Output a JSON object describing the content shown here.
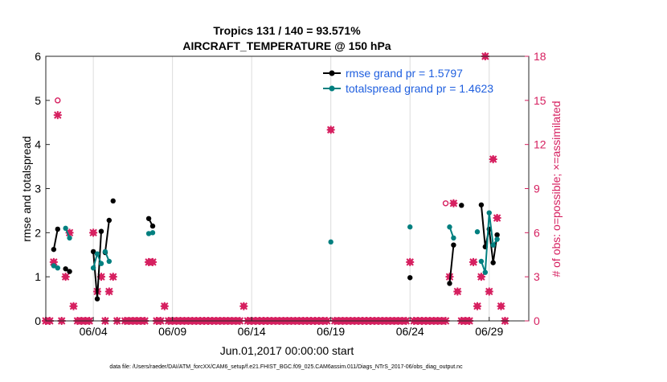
{
  "chart_data": {
    "type": "line",
    "title_line1": "Tropics 131 / 140 = 93.571%",
    "title_line2": "AIRCRAFT_TEMPERATURE @ 150 hPa",
    "xlabel": "Jun.01,2017 00:00:00 start",
    "ylabel_left": "rmse and totalspread",
    "ylabel_right": "# of obs: o=possible; ×=assimilated",
    "footnote": "data file: /Users/raeder/DAI/ATM_forcXX/CAM6_setup/f.e21.FHIST_BGC.f09_025.CAM6assim.011/Diags_NTrS_2017-06/obs_diag_output.nc",
    "xlim": [
      0,
      30.5
    ],
    "ylim_left": [
      0,
      6
    ],
    "ylim_right": [
      0,
      18
    ],
    "x_ticks": [
      {
        "x": 3,
        "label": "06/04"
      },
      {
        "x": 8,
        "label": "06/09"
      },
      {
        "x": 13,
        "label": "06/14"
      },
      {
        "x": 18,
        "label": "06/19"
      },
      {
        "x": 23,
        "label": "06/24"
      },
      {
        "x": 28,
        "label": "06/29"
      }
    ],
    "y_ticks_left": [
      "0",
      "1",
      "2",
      "3",
      "4",
      "5",
      "6"
    ],
    "y_ticks_right": [
      "0",
      "3",
      "6",
      "9",
      "12",
      "15",
      "18"
    ],
    "colors": {
      "rmse": "#000000",
      "spread": "#007f7f",
      "obs": "#d62060",
      "legend_text": "#1f5fdf"
    },
    "series": [
      {
        "name": "rmse grand pr = 1.5797",
        "axis": "left",
        "points": [
          [
            0.5,
            1.62
          ],
          [
            0.75,
            2.08
          ],
          null,
          [
            1.25,
            1.18
          ],
          [
            1.5,
            1.12
          ],
          null,
          [
            3.0,
            1.57
          ],
          [
            3.25,
            0.5
          ],
          [
            3.5,
            2.03
          ],
          null,
          [
            3.75,
            1.55
          ],
          [
            4.0,
            2.28
          ],
          null,
          [
            4.25,
            2.72
          ],
          null,
          [
            6.5,
            2.32
          ],
          [
            6.75,
            2.15
          ],
          null,
          [
            23.0,
            0.98
          ],
          null,
          [
            25.5,
            0.85
          ],
          [
            25.75,
            1.72
          ],
          null,
          [
            26.25,
            2.62
          ],
          null,
          [
            27.5,
            2.63
          ],
          [
            27.75,
            1.68
          ],
          [
            28.0,
            2.08
          ],
          [
            28.25,
            1.32
          ],
          [
            28.5,
            1.95
          ]
        ]
      },
      {
        "name": "totalspread grand pr = 1.4623",
        "axis": "left",
        "points": [
          [
            0.5,
            1.25
          ],
          [
            0.75,
            1.2
          ],
          null,
          [
            1.25,
            2.1
          ],
          [
            1.5,
            1.88
          ],
          null,
          [
            3.0,
            1.2
          ],
          [
            3.25,
            1.52
          ],
          [
            3.5,
            1.3
          ],
          null,
          [
            3.75,
            1.57
          ],
          [
            4.0,
            1.35
          ],
          null,
          [
            6.5,
            1.98
          ],
          [
            6.75,
            2.0
          ],
          null,
          [
            18.0,
            1.79
          ],
          null,
          [
            23.0,
            2.13
          ],
          null,
          [
            25.5,
            2.13
          ],
          [
            25.75,
            1.88
          ],
          null,
          [
            27.25,
            2.02
          ],
          null,
          [
            27.5,
            1.35
          ],
          [
            27.75,
            1.1
          ],
          [
            28.0,
            2.45
          ],
          [
            28.25,
            1.72
          ],
          [
            28.5,
            1.85
          ]
        ]
      }
    ],
    "obs_possible": [
      [
        0.0,
        0
      ],
      [
        0.25,
        0
      ],
      [
        0.5,
        4
      ],
      [
        0.75,
        15
      ],
      [
        1.0,
        0
      ],
      [
        1.25,
        3
      ],
      [
        1.5,
        6
      ],
      [
        1.75,
        1
      ],
      [
        2.0,
        0
      ],
      [
        2.25,
        0
      ],
      [
        2.5,
        0
      ],
      [
        2.75,
        0
      ],
      [
        3.0,
        6
      ],
      [
        3.25,
        2
      ],
      [
        3.5,
        3
      ],
      [
        3.75,
        0
      ],
      [
        4.0,
        2
      ],
      [
        4.25,
        3
      ],
      [
        4.5,
        0
      ],
      [
        5.0,
        0
      ],
      [
        5.25,
        0
      ],
      [
        5.5,
        0
      ],
      [
        5.75,
        0
      ],
      [
        6.0,
        0
      ],
      [
        6.25,
        0
      ],
      [
        6.5,
        4
      ],
      [
        6.75,
        4
      ],
      [
        7.0,
        0
      ],
      [
        7.25,
        0
      ],
      [
        7.5,
        1
      ],
      [
        7.75,
        0
      ],
      [
        8.0,
        0
      ],
      [
        8.25,
        0
      ],
      [
        8.5,
        0
      ],
      [
        8.75,
        0
      ],
      [
        9.0,
        0
      ],
      [
        9.25,
        0
      ],
      [
        9.5,
        0
      ],
      [
        9.75,
        0
      ],
      [
        10.0,
        0
      ],
      [
        10.25,
        0
      ],
      [
        10.5,
        0
      ],
      [
        10.75,
        0
      ],
      [
        11.0,
        0
      ],
      [
        11.25,
        0
      ],
      [
        11.5,
        0
      ],
      [
        11.75,
        0
      ],
      [
        12.0,
        0
      ],
      [
        12.25,
        0
      ],
      [
        12.5,
        1
      ],
      [
        12.75,
        0
      ],
      [
        13.0,
        0
      ],
      [
        13.25,
        0
      ],
      [
        13.5,
        0
      ],
      [
        13.75,
        0
      ],
      [
        14.0,
        0
      ],
      [
        14.25,
        0
      ],
      [
        14.5,
        0
      ],
      [
        14.75,
        0
      ],
      [
        15.0,
        0
      ],
      [
        15.25,
        0
      ],
      [
        15.5,
        0
      ],
      [
        15.75,
        0
      ],
      [
        16.0,
        0
      ],
      [
        16.25,
        0
      ],
      [
        16.5,
        0
      ],
      [
        16.75,
        0
      ],
      [
        17.0,
        0
      ],
      [
        17.25,
        0
      ],
      [
        17.5,
        0
      ],
      [
        17.75,
        0
      ],
      [
        18.0,
        13
      ],
      [
        18.25,
        0
      ],
      [
        18.5,
        0
      ],
      [
        18.75,
        0
      ],
      [
        19.0,
        0
      ],
      [
        19.25,
        0
      ],
      [
        19.5,
        0
      ],
      [
        19.75,
        0
      ],
      [
        20.0,
        0
      ],
      [
        20.25,
        0
      ],
      [
        20.5,
        0
      ],
      [
        20.75,
        0
      ],
      [
        21.0,
        0
      ],
      [
        21.25,
        0
      ],
      [
        21.5,
        0
      ],
      [
        21.75,
        0
      ],
      [
        22.0,
        0
      ],
      [
        22.25,
        0
      ],
      [
        22.5,
        0
      ],
      [
        22.75,
        0
      ],
      [
        23.0,
        4
      ],
      [
        23.25,
        0
      ],
      [
        23.5,
        0
      ],
      [
        23.75,
        0
      ],
      [
        24.0,
        0
      ],
      [
        24.25,
        0
      ],
      [
        24.5,
        0
      ],
      [
        24.75,
        0
      ],
      [
        25.0,
        0
      ],
      [
        25.25,
        8
      ],
      [
        25.5,
        3
      ],
      [
        25.75,
        8
      ],
      [
        26.0,
        2
      ],
      [
        26.25,
        0
      ],
      [
        26.5,
        0
      ],
      [
        26.75,
        0
      ],
      [
        27.0,
        4
      ],
      [
        27.25,
        1
      ],
      [
        27.5,
        3
      ],
      [
        27.75,
        18
      ],
      [
        28.0,
        2
      ],
      [
        28.25,
        11
      ],
      [
        28.5,
        7
      ],
      [
        28.75,
        1
      ],
      [
        29.0,
        0
      ]
    ],
    "obs_assimilated": [
      [
        0.0,
        0
      ],
      [
        0.25,
        0
      ],
      [
        0.5,
        4
      ],
      [
        0.75,
        14
      ],
      [
        1.0,
        0
      ],
      [
        1.25,
        3
      ],
      [
        1.5,
        6
      ],
      [
        1.75,
        1
      ],
      [
        2.0,
        0
      ],
      [
        2.25,
        0
      ],
      [
        2.5,
        0
      ],
      [
        2.75,
        0
      ],
      [
        3.0,
        6
      ],
      [
        3.25,
        2
      ],
      [
        3.5,
        3
      ],
      [
        3.75,
        0
      ],
      [
        4.0,
        2
      ],
      [
        4.25,
        3
      ],
      [
        4.5,
        0
      ],
      [
        5.0,
        0
      ],
      [
        5.25,
        0
      ],
      [
        5.5,
        0
      ],
      [
        5.75,
        0
      ],
      [
        6.0,
        0
      ],
      [
        6.25,
        0
      ],
      [
        6.5,
        4
      ],
      [
        6.75,
        4
      ],
      [
        7.0,
        0
      ],
      [
        7.25,
        0
      ],
      [
        7.5,
        1
      ],
      [
        7.75,
        0
      ],
      [
        8.0,
        0
      ],
      [
        8.25,
        0
      ],
      [
        8.5,
        0
      ],
      [
        8.75,
        0
      ],
      [
        9.0,
        0
      ],
      [
        9.25,
        0
      ],
      [
        9.5,
        0
      ],
      [
        9.75,
        0
      ],
      [
        10.0,
        0
      ],
      [
        10.25,
        0
      ],
      [
        10.5,
        0
      ],
      [
        10.75,
        0
      ],
      [
        11.0,
        0
      ],
      [
        11.25,
        0
      ],
      [
        11.5,
        0
      ],
      [
        11.75,
        0
      ],
      [
        12.0,
        0
      ],
      [
        12.25,
        0
      ],
      [
        12.5,
        1
      ],
      [
        12.75,
        0
      ],
      [
        13.0,
        0
      ],
      [
        13.25,
        0
      ],
      [
        13.5,
        0
      ],
      [
        13.75,
        0
      ],
      [
        14.0,
        0
      ],
      [
        14.25,
        0
      ],
      [
        14.5,
        0
      ],
      [
        14.75,
        0
      ],
      [
        15.0,
        0
      ],
      [
        15.25,
        0
      ],
      [
        15.5,
        0
      ],
      [
        15.75,
        0
      ],
      [
        16.0,
        0
      ],
      [
        16.25,
        0
      ],
      [
        16.5,
        0
      ],
      [
        16.75,
        0
      ],
      [
        17.0,
        0
      ],
      [
        17.25,
        0
      ],
      [
        17.5,
        0
      ],
      [
        17.75,
        0
      ],
      [
        18.0,
        13
      ],
      [
        18.25,
        0
      ],
      [
        18.5,
        0
      ],
      [
        18.75,
        0
      ],
      [
        19.0,
        0
      ],
      [
        19.25,
        0
      ],
      [
        19.5,
        0
      ],
      [
        19.75,
        0
      ],
      [
        20.0,
        0
      ],
      [
        20.25,
        0
      ],
      [
        20.5,
        0
      ],
      [
        20.75,
        0
      ],
      [
        21.0,
        0
      ],
      [
        21.25,
        0
      ],
      [
        21.5,
        0
      ],
      [
        21.75,
        0
      ],
      [
        22.0,
        0
      ],
      [
        22.25,
        0
      ],
      [
        22.5,
        0
      ],
      [
        22.75,
        0
      ],
      [
        23.0,
        4
      ],
      [
        23.25,
        0
      ],
      [
        23.5,
        0
      ],
      [
        23.75,
        0
      ],
      [
        24.0,
        0
      ],
      [
        24.25,
        0
      ],
      [
        24.5,
        0
      ],
      [
        24.75,
        0
      ],
      [
        25.0,
        0
      ],
      [
        25.25,
        0
      ],
      [
        25.5,
        3
      ],
      [
        25.75,
        8
      ],
      [
        26.0,
        2
      ],
      [
        26.25,
        0
      ],
      [
        26.5,
        0
      ],
      [
        26.75,
        0
      ],
      [
        27.0,
        4
      ],
      [
        27.25,
        1
      ],
      [
        27.5,
        3
      ],
      [
        27.75,
        18
      ],
      [
        28.0,
        2
      ],
      [
        28.25,
        11
      ],
      [
        28.5,
        7
      ],
      [
        28.75,
        1
      ],
      [
        29.0,
        0
      ]
    ],
    "legend_position": "top-right"
  }
}
